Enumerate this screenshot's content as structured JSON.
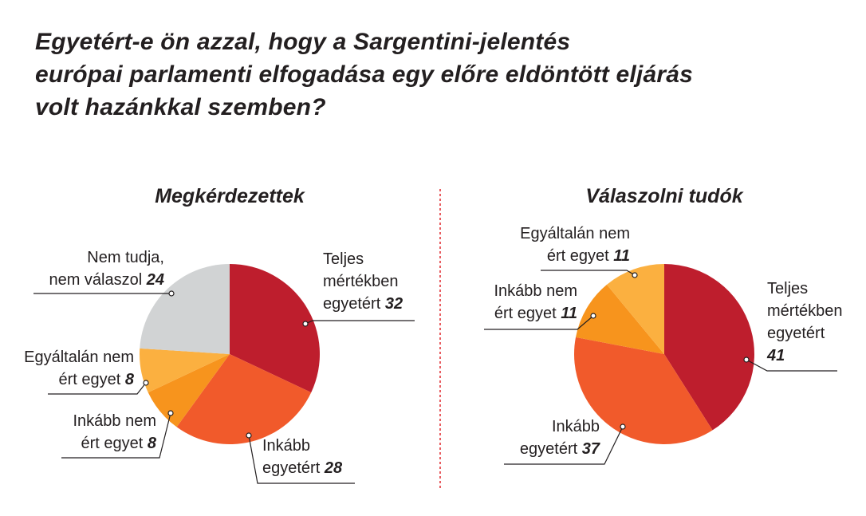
{
  "title_lines": [
    "Egyetért-e ön azzal, hogy a Sargentini-jelentés",
    "európai parlamenti elfogadása egy előre eldöntött eljárás",
    "volt hazánkkal szemben?"
  ],
  "chart_data": [
    {
      "type": "pie",
      "title": "Megkérdezettek",
      "slices": [
        {
          "label_lines": [
            "Teljes",
            "mértékben",
            "egyetért"
          ],
          "value": 32,
          "color": "#be1e2d"
        },
        {
          "label_lines": [
            "Inkább",
            "egyetért"
          ],
          "value": 28,
          "color": "#f15a2b"
        },
        {
          "label_lines": [
            "Inkább nem",
            "ért egyet"
          ],
          "value": 8,
          "color": "#f7941d"
        },
        {
          "label_lines": [
            "Egyáltalán nem",
            "ért egyet"
          ],
          "value": 8,
          "color": "#fbb040"
        },
        {
          "label_lines": [
            "Nem tudja,",
            "nem válaszol"
          ],
          "value": 24,
          "color": "#d1d3d4"
        }
      ]
    },
    {
      "type": "pie",
      "title": "Válaszolni tudók",
      "slices": [
        {
          "label_lines": [
            "Teljes",
            "mértékben",
            "egyetért"
          ],
          "value": 41,
          "color": "#be1e2d"
        },
        {
          "label_lines": [
            "Inkább",
            "egyetért"
          ],
          "value": 37,
          "color": "#f15a2b"
        },
        {
          "label_lines": [
            "Inkább nem",
            "ért egyet"
          ],
          "value": 11,
          "color": "#f7941d"
        },
        {
          "label_lines": [
            "Egyáltalán nem",
            "ért egyet"
          ],
          "value": 11,
          "color": "#fbb040"
        }
      ]
    }
  ],
  "divider_color": "#e0262b"
}
